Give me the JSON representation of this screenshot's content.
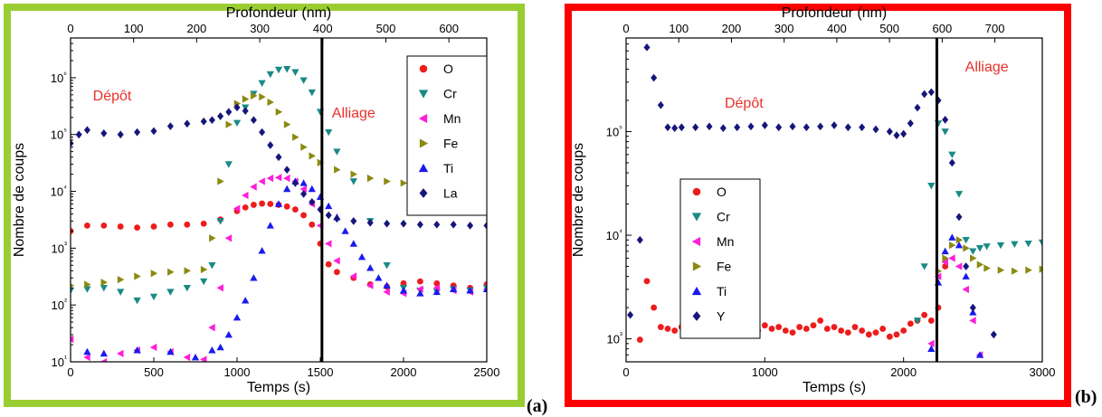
{
  "panels": {
    "a": {
      "label": "(a)",
      "frame_color": "#9acd32"
    },
    "b": {
      "label": "(b)",
      "frame_color": "#ff0000"
    }
  },
  "chart_data": [
    {
      "type": "scatter",
      "panel": "a",
      "xlabel": "Temps (s)",
      "x2label": "Profondeur (nm)",
      "ylabel": "Nombre de coups",
      "xlim": [
        0,
        2500
      ],
      "ylim": [
        10,
        5000000
      ],
      "yscale": "log",
      "xticks": [
        0,
        500,
        1000,
        1500,
        2000,
        2500
      ],
      "x2ticks": [
        0,
        100,
        200,
        300,
        400,
        500,
        600
      ],
      "x2lim": [
        0,
        660
      ],
      "yticks": [
        10,
        100,
        1000,
        10000,
        100000,
        1000000
      ],
      "ytick_labels": [
        "10¹",
        "10²",
        "10³",
        "10⁴",
        "10⁵",
        "10⁶"
      ],
      "vline_x": 1510,
      "annotations": [
        {
          "text": "Dépôt",
          "x": 250,
          "y": 400000,
          "color": "#e8312a"
        },
        {
          "text": "Alliage",
          "x": 1700,
          "y": 200000,
          "color": "#e8312a"
        }
      ],
      "legend": "top-right",
      "series": [
        {
          "name": "O",
          "marker": "circle",
          "color": "#ee1c1c",
          "x": [
            0,
            100,
            200,
            300,
            400,
            500,
            600,
            700,
            800,
            900,
            1000,
            1050,
            1100,
            1150,
            1200,
            1250,
            1300,
            1350,
            1400,
            1450,
            1500,
            1550,
            1600,
            1700,
            1800,
            1900,
            2000,
            2100,
            2200,
            2300,
            2400,
            2500
          ],
          "y": [
            2000,
            2500,
            2500,
            2400,
            2300,
            2400,
            2600,
            2600,
            2700,
            3200,
            4500,
            5200,
            5800,
            6100,
            6000,
            5800,
            5400,
            4800,
            3800,
            2600,
            1200,
            520,
            380,
            300,
            230,
            210,
            240,
            260,
            240,
            220,
            200,
            230
          ]
        },
        {
          "name": "Cr",
          "marker": "triangle-down",
          "color": "#1a8a86",
          "x": [
            0,
            100,
            200,
            300,
            400,
            500,
            600,
            700,
            800,
            850,
            900,
            950,
            1000,
            1050,
            1100,
            1150,
            1200,
            1250,
            1300,
            1350,
            1400,
            1450,
            1500,
            1550,
            1600,
            1700,
            1800,
            1900,
            2000,
            2100,
            2200,
            2300,
            2400,
            2500
          ],
          "y": [
            180,
            190,
            200,
            170,
            120,
            140,
            170,
            200,
            260,
            500,
            3000,
            30000,
            160000,
            300000,
            520000,
            800000,
            1150000,
            1380000,
            1420000,
            1250000,
            900000,
            550000,
            250000,
            110000,
            50000,
            15000,
            3000,
            500,
            200,
            180,
            170,
            190,
            180,
            200
          ]
        },
        {
          "name": "Mn",
          "marker": "triangle-left",
          "color": "#ff1ed8",
          "x": [
            0,
            100,
            200,
            300,
            400,
            500,
            600,
            700,
            800,
            850,
            900,
            950,
            1000,
            1050,
            1100,
            1150,
            1200,
            1250,
            1300,
            1350,
            1400,
            1450,
            1500,
            1550,
            1600,
            1700,
            1800,
            1900,
            2000,
            2100,
            2200,
            2300,
            2400,
            2500
          ],
          "y": [
            25,
            12,
            10,
            14,
            16,
            18,
            15,
            12,
            11,
            40,
            200,
            1500,
            5000,
            8500,
            12000,
            15000,
            17000,
            17500,
            17000,
            15000,
            11000,
            6000,
            2500,
            1200,
            600,
            320,
            220,
            170,
            160,
            190,
            200,
            180,
            170,
            190
          ]
        },
        {
          "name": "Fe",
          "marker": "triangle-right",
          "color": "#8a8a12",
          "x": [
            0,
            100,
            200,
            300,
            400,
            500,
            600,
            700,
            800,
            850,
            900,
            950,
            1000,
            1050,
            1100,
            1150,
            1200,
            1250,
            1300,
            1350,
            1400,
            1450,
            1500,
            1600,
            1700,
            1800,
            1900,
            2000,
            2100,
            2200,
            2300,
            2400,
            2500
          ],
          "y": [
            220,
            230,
            250,
            280,
            320,
            360,
            380,
            400,
            420,
            1500,
            15000,
            150000,
            350000,
            420000,
            480000,
            460000,
            370000,
            250000,
            150000,
            90000,
            60000,
            42000,
            32000,
            24000,
            20000,
            17000,
            15000,
            14000,
            13500,
            13500,
            14000,
            13500,
            14000
          ]
        },
        {
          "name": "Ti",
          "marker": "triangle-up",
          "color": "#1a1aee",
          "x": [
            100,
            200,
            400,
            600,
            750,
            850,
            900,
            950,
            1000,
            1050,
            1100,
            1150,
            1200,
            1250,
            1300,
            1350,
            1400,
            1450,
            1500,
            1550,
            1600,
            1650,
            1700,
            1750,
            1800,
            1850,
            1900,
            2000,
            2100,
            2200,
            2300,
            2400,
            2500
          ],
          "y": [
            15,
            14,
            16,
            15,
            12,
            16,
            18,
            30,
            60,
            120,
            300,
            900,
            2500,
            6000,
            11000,
            15000,
            14000,
            11000,
            8000,
            5500,
            3500,
            2000,
            1200,
            700,
            450,
            300,
            220,
            180,
            160,
            170,
            190,
            180,
            190
          ]
        },
        {
          "name": "La",
          "marker": "diamond",
          "color": "#16167a",
          "x": [
            0,
            50,
            100,
            200,
            300,
            400,
            500,
            600,
            700,
            800,
            850,
            900,
            950,
            1000,
            1050,
            1100,
            1150,
            1200,
            1250,
            1300,
            1350,
            1400,
            1450,
            1500,
            1550,
            1600,
            1700,
            1800,
            1900,
            2000,
            2100,
            2200,
            2300,
            2400,
            2500
          ],
          "y": [
            70000,
            100000,
            120000,
            105000,
            100000,
            110000,
            115000,
            140000,
            155000,
            170000,
            180000,
            210000,
            250000,
            300000,
            260000,
            180000,
            110000,
            65000,
            40000,
            24000,
            14000,
            9000,
            6500,
            4800,
            3800,
            3300,
            3000,
            2800,
            2700,
            2700,
            2600,
            2600,
            2600,
            2500,
            2500
          ]
        }
      ]
    },
    {
      "type": "scatter",
      "panel": "b",
      "xlabel": "Temps (s)",
      "x2label": "Profondeur (nm)",
      "ylabel": "Nombre de coups",
      "xlim": [
        0,
        3000
      ],
      "ylim": [
        600,
        800000
      ],
      "yscale": "log",
      "xticks": [
        0,
        1000,
        2000,
        3000
      ],
      "x2ticks": [
        0,
        100,
        200,
        300,
        400,
        500,
        600,
        700
      ],
      "x2lim": [
        0,
        790
      ],
      "yticks": [
        1000,
        10000,
        100000
      ],
      "ytick_labels": [
        "10³",
        "10⁴",
        "10⁵"
      ],
      "vline_x": 2240,
      "annotations": [
        {
          "text": "Dépôt",
          "x": 850,
          "y": 170000,
          "color": "#e8312a"
        },
        {
          "text": "Alliage",
          "x": 2600,
          "y": 380000,
          "color": "#e8312a"
        }
      ],
      "legend": "center-left",
      "series": [
        {
          "name": "O",
          "marker": "circle",
          "color": "#ee1c1c",
          "x": [
            100,
            150,
            200,
            250,
            300,
            350,
            400,
            450,
            500,
            550,
            600,
            650,
            700,
            750,
            800,
            850,
            900,
            950,
            1000,
            1050,
            1100,
            1150,
            1200,
            1250,
            1300,
            1350,
            1400,
            1450,
            1500,
            1550,
            1600,
            1650,
            1700,
            1750,
            1800,
            1850,
            1900,
            1950,
            2000,
            2050,
            2100,
            2150,
            2200,
            2250,
            2300
          ],
          "y": [
            980,
            3600,
            2000,
            1300,
            1250,
            1200,
            1300,
            1100,
            1250,
            1350,
            1150,
            1300,
            1100,
            1200,
            1250,
            1300,
            1100,
            1200,
            1350,
            1250,
            1300,
            1200,
            1150,
            1300,
            1250,
            1350,
            1500,
            1250,
            1300,
            1200,
            1150,
            1300,
            1200,
            1100,
            1150,
            1250,
            1050,
            1100,
            1200,
            1400,
            1500,
            1700,
            1500,
            2000,
            5000
          ]
        },
        {
          "name": "Cr",
          "marker": "triangle-down",
          "color": "#1a8a86",
          "x": [
            2100,
            2150,
            2200,
            2250,
            2300,
            2350,
            2400,
            2450,
            2500,
            2550,
            2600,
            2700,
            2800,
            2900,
            3000
          ],
          "y": [
            1500,
            5000,
            30000,
            120000,
            100000,
            60000,
            25000,
            9000,
            7000,
            7500,
            7800,
            8000,
            8200,
            8300,
            8500
          ]
        },
        {
          "name": "Mn",
          "marker": "triangle-left",
          "color": "#ff1ed8",
          "x": [
            2200,
            2250,
            2300,
            2350,
            2400,
            2450,
            2500,
            2550
          ],
          "y": [
            900,
            4000,
            5500,
            6000,
            5000,
            3000,
            1500,
            700
          ]
        },
        {
          "name": "Fe",
          "marker": "triangle-right",
          "color": "#8a8a12",
          "x": [
            2250,
            2300,
            2350,
            2400,
            2450,
            2500,
            2550,
            2600,
            2700,
            2800,
            2900,
            3000
          ],
          "y": [
            4500,
            6000,
            8000,
            9000,
            7500,
            6000,
            5200,
            4800,
            4600,
            4500,
            4600,
            4700
          ]
        },
        {
          "name": "Ti",
          "marker": "triangle-up",
          "color": "#1a1aee",
          "x": [
            2200,
            2250,
            2300,
            2350,
            2400,
            2450,
            2500,
            2550
          ],
          "y": [
            800,
            3500,
            7000,
            9500,
            8000,
            4000,
            1800,
            700
          ]
        },
        {
          "name": "Y",
          "marker": "diamond",
          "color": "#16167a",
          "x": [
            30,
            100,
            150,
            200,
            250,
            300,
            350,
            400,
            500,
            600,
            700,
            800,
            900,
            1000,
            1100,
            1200,
            1300,
            1400,
            1500,
            1600,
            1700,
            1800,
            1900,
            1950,
            2000,
            2050,
            2100,
            2150,
            2200,
            2250,
            2300,
            2350,
            2400,
            2450,
            2500,
            2650
          ],
          "y": [
            1700,
            9000,
            650000,
            330000,
            180000,
            110000,
            108000,
            110000,
            110000,
            112000,
            108000,
            110000,
            112000,
            115000,
            110000,
            112000,
            110000,
            112000,
            115000,
            110000,
            110000,
            105000,
            100000,
            92000,
            95000,
            120000,
            170000,
            230000,
            240000,
            200000,
            130000,
            50000,
            15000,
            5000,
            2000,
            1100
          ]
        }
      ]
    }
  ]
}
